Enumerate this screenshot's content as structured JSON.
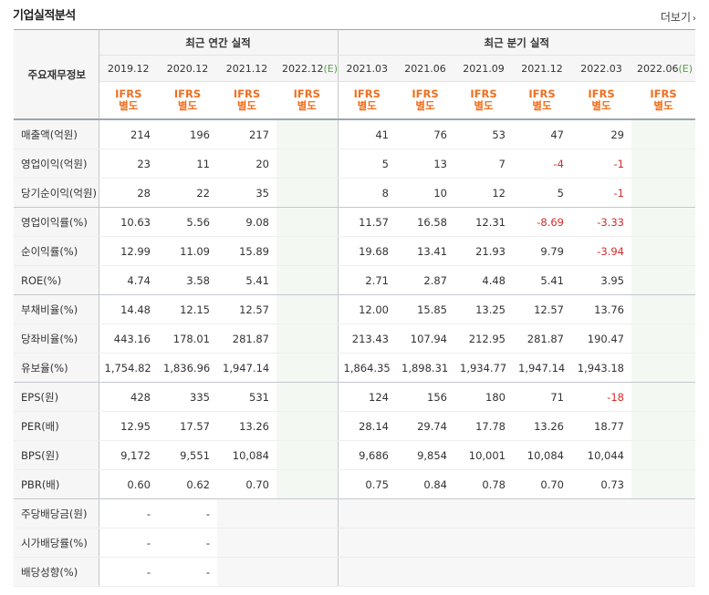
{
  "section_title": "기업실적분석",
  "more_label": "더보기",
  "row_header_title": "주요재무정보",
  "annual_group_label": "최근 연간 실적",
  "quarter_group_label": "최근 분기 실적",
  "ifrs_label": "IFRS",
  "sep_label": "별도",
  "estimate_tag": "(E)",
  "periods": [
    "2019.12",
    "2020.12",
    "2021.12",
    "2022.12",
    "2021.03",
    "2021.06",
    "2021.09",
    "2021.12",
    "2022.03",
    "2022.06"
  ],
  "rows": [
    {
      "label": "매출액(억원)",
      "values": [
        "214",
        "196",
        "217",
        "",
        "41",
        "76",
        "53",
        "47",
        "29",
        ""
      ]
    },
    {
      "label": "영업이익(억원)",
      "values": [
        "23",
        "11",
        "20",
        "",
        "5",
        "13",
        "7",
        "-4",
        "-1",
        ""
      ]
    },
    {
      "label": "당기순이익(억원)",
      "values": [
        "28",
        "22",
        "35",
        "",
        "8",
        "10",
        "12",
        "5",
        "-1",
        ""
      ]
    },
    {
      "label": "영업이익률(%)",
      "values": [
        "10.63",
        "5.56",
        "9.08",
        "",
        "11.57",
        "16.58",
        "12.31",
        "-8.69",
        "-3.33",
        ""
      ]
    },
    {
      "label": "순이익률(%)",
      "values": [
        "12.99",
        "11.09",
        "15.89",
        "",
        "19.68",
        "13.41",
        "21.93",
        "9.79",
        "-3.94",
        ""
      ]
    },
    {
      "label": "ROE(%)",
      "values": [
        "4.74",
        "3.58",
        "5.41",
        "",
        "2.71",
        "2.87",
        "4.48",
        "5.41",
        "3.95",
        ""
      ]
    },
    {
      "label": "부채비율(%)",
      "values": [
        "14.48",
        "12.15",
        "12.57",
        "",
        "12.00",
        "15.85",
        "13.25",
        "12.57",
        "13.76",
        ""
      ]
    },
    {
      "label": "당좌비율(%)",
      "values": [
        "443.16",
        "178.01",
        "281.87",
        "",
        "213.43",
        "107.94",
        "212.95",
        "281.87",
        "190.47",
        ""
      ]
    },
    {
      "label": "유보율(%)",
      "values": [
        "1,754.82",
        "1,836.96",
        "1,947.14",
        "",
        "1,864.35",
        "1,898.31",
        "1,934.77",
        "1,947.14",
        "1,943.18",
        ""
      ]
    },
    {
      "label": "EPS(원)",
      "values": [
        "428",
        "335",
        "531",
        "",
        "124",
        "156",
        "180",
        "71",
        "-18",
        ""
      ]
    },
    {
      "label": "PER(배)",
      "values": [
        "12.95",
        "17.57",
        "13.26",
        "",
        "28.14",
        "29.74",
        "17.78",
        "13.26",
        "18.77",
        ""
      ]
    },
    {
      "label": "BPS(원)",
      "values": [
        "9,172",
        "9,551",
        "10,084",
        "",
        "9,686",
        "9,854",
        "10,001",
        "10,084",
        "10,044",
        ""
      ]
    },
    {
      "label": "PBR(배)",
      "values": [
        "0.60",
        "0.62",
        "0.70",
        "",
        "0.75",
        "0.84",
        "0.78",
        "0.70",
        "0.73",
        ""
      ]
    },
    {
      "label": "주당배당금(원)",
      "values": [
        "-",
        "-",
        "",
        "",
        "",
        "",
        "",
        "",
        "",
        ""
      ]
    },
    {
      "label": "시가배당률(%)",
      "values": [
        "-",
        "-",
        "",
        "",
        "",
        "",
        "",
        "",
        "",
        ""
      ]
    },
    {
      "label": "배당성향(%)",
      "values": [
        "-",
        "-",
        "",
        "",
        "",
        "",
        "",
        "",
        "",
        ""
      ]
    }
  ]
}
